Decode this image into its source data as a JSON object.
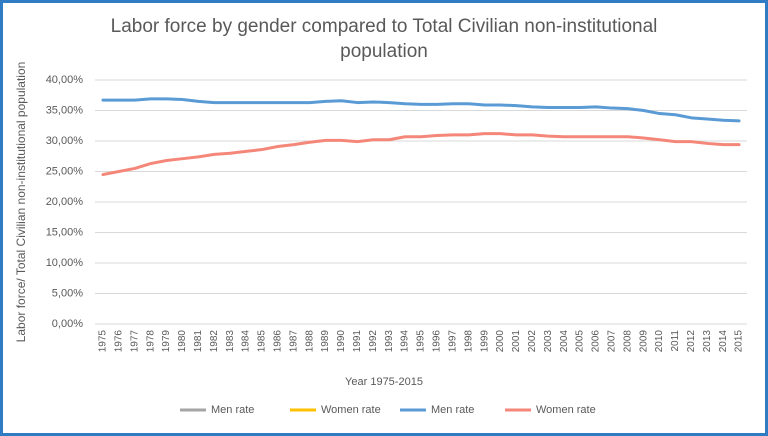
{
  "chart_data": {
    "type": "line",
    "title": "Labor force by gender compared to Total Civilian non-institutional population",
    "x_label": "Year 1975-2015",
    "y_label": "Labor force/ Total Civilian non-institutional population",
    "categories": [
      "1975",
      "1976",
      "1977",
      "1978",
      "1979",
      "1980",
      "1981",
      "1982",
      "1983",
      "1984",
      "1985",
      "1986",
      "1987",
      "1988",
      "1989",
      "1990",
      "1991",
      "1992",
      "1993",
      "1994",
      "1995",
      "1996",
      "1997",
      "1998",
      "1999",
      "2000",
      "2001",
      "2002",
      "2003",
      "2004",
      "2005",
      "2006",
      "2007",
      "2008",
      "2009",
      "2010",
      "2011",
      "2012",
      "2013",
      "2014",
      "2015"
    ],
    "series": [
      {
        "name": "Men rate",
        "color": "#a5a5a5",
        "values": [
          null,
          null,
          null,
          null,
          null,
          null,
          null,
          null,
          null,
          null,
          null,
          null,
          null,
          null,
          null,
          null,
          null,
          null,
          null,
          null,
          null,
          null,
          null,
          null,
          null,
          null,
          null,
          null,
          null,
          null,
          null,
          null,
          null,
          null,
          null,
          null,
          null,
          null,
          null,
          null,
          null
        ]
      },
      {
        "name": "Women rate",
        "color": "#ffc000",
        "values": [
          null,
          null,
          null,
          null,
          null,
          null,
          null,
          null,
          null,
          null,
          null,
          null,
          null,
          null,
          null,
          null,
          null,
          null,
          null,
          null,
          null,
          null,
          null,
          null,
          null,
          null,
          null,
          null,
          null,
          null,
          null,
          null,
          null,
          null,
          null,
          null,
          null,
          null,
          null,
          null,
          null
        ]
      },
      {
        "name": "Men rate",
        "color": "#5b9bd5",
        "values": [
          36.7,
          36.7,
          36.7,
          36.9,
          36.9,
          36.8,
          36.5,
          36.3,
          36.3,
          36.3,
          36.3,
          36.3,
          36.3,
          36.3,
          36.5,
          36.6,
          36.3,
          36.4,
          36.3,
          36.1,
          36.0,
          36.0,
          36.1,
          36.1,
          35.9,
          35.9,
          35.8,
          35.6,
          35.5,
          35.5,
          35.5,
          35.6,
          35.4,
          35.3,
          35.0,
          34.5,
          34.3,
          33.8,
          33.6,
          33.4,
          33.3
        ]
      },
      {
        "name": "Women rate",
        "color": "#f4877a",
        "values": [
          24.5,
          25.0,
          25.5,
          26.3,
          26.8,
          27.1,
          27.4,
          27.8,
          28.0,
          28.3,
          28.6,
          29.1,
          29.4,
          29.8,
          30.1,
          30.1,
          29.9,
          30.2,
          30.2,
          30.7,
          30.7,
          30.9,
          31.0,
          31.0,
          31.2,
          31.2,
          31.0,
          31.0,
          30.8,
          30.7,
          30.7,
          30.7,
          30.7,
          30.7,
          30.5,
          30.2,
          29.9,
          29.9,
          29.6,
          29.4,
          29.4
        ]
      }
    ],
    "ylim": [
      0,
      40
    ],
    "yticks": [
      {
        "value": 0,
        "label": "0,00%"
      },
      {
        "value": 5,
        "label": "5,00%"
      },
      {
        "value": 10,
        "label": "10,00%"
      },
      {
        "value": 15,
        "label": "15,00%"
      },
      {
        "value": 20,
        "label": "20,00%"
      },
      {
        "value": 25,
        "label": "25,00%"
      },
      {
        "value": 30,
        "label": "30,00%"
      },
      {
        "value": 35,
        "label": "35,00%"
      },
      {
        "value": 40,
        "label": "40,00%"
      }
    ],
    "grid": true,
    "legend": "bottom"
  }
}
